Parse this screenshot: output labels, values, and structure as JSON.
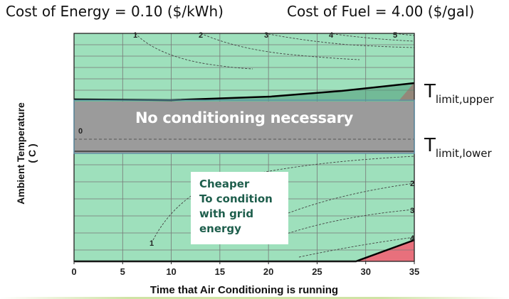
{
  "header": {
    "energy_cost": "Cost of Energy  = 0.10 ($/kWh)",
    "fuel_cost": "Cost of Fuel = 4.00 ($/gal)"
  },
  "labels": {
    "t_symbol": "T",
    "upper_sub": "limit,upper",
    "lower_sub": "limit,lower",
    "no_conditioning": "No conditioning necessary",
    "cheaper": [
      "Cheaper",
      "To condition",
      "with grid",
      "energy"
    ]
  },
  "chart_data": {
    "type": "area",
    "xlabel": "Time that Air Conditioning is running",
    "ylabel_lines": [
      "Ambient Temperature",
      "( C )"
    ],
    "xlim": [
      0,
      35
    ],
    "x_ticks": [
      0,
      5,
      10,
      15,
      20,
      25,
      30,
      35
    ],
    "colors": {
      "conditioning_region": "#9ee0bc",
      "no_conditioning_band": "#9b9b9b",
      "red_region": "#e8707c",
      "boundary": "#000000",
      "contour": "#444444"
    },
    "contour_labels_top": [
      "1",
      "2",
      "3",
      "4",
      "5"
    ],
    "contour_labels_bottom": [
      "1",
      "2",
      "3",
      "4"
    ],
    "band_center_label": "0",
    "grid": true
  }
}
